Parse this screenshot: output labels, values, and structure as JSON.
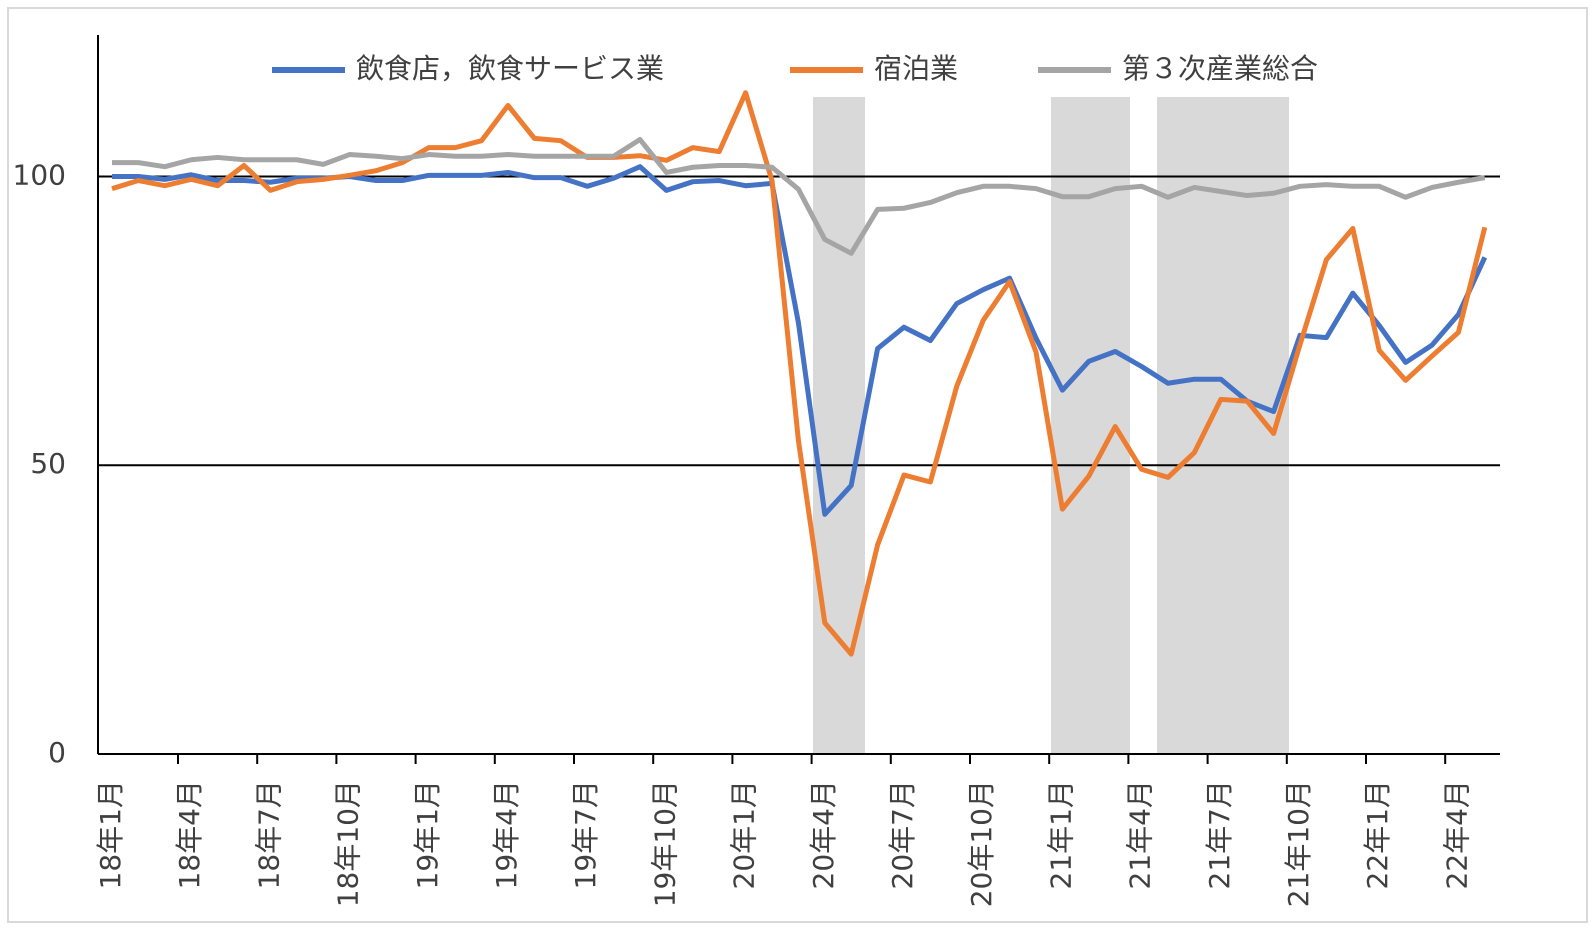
{
  "chart_data": {
    "type": "line",
    "categories": [
      "18年1月",
      null,
      null,
      "18年4月",
      null,
      null,
      "18年7月",
      null,
      null,
      "18年10月",
      null,
      null,
      "19年1月",
      null,
      null,
      "19年4月",
      null,
      null,
      "19年7月",
      null,
      null,
      "19年10月",
      null,
      null,
      "20年1月",
      null,
      null,
      "20年4月",
      null,
      null,
      "20年7月",
      null,
      null,
      "20年10月",
      null,
      null,
      "21年1月",
      null,
      null,
      "21年4月",
      null,
      null,
      "21年7月",
      null,
      null,
      "21年10月",
      null,
      null,
      "22年1月",
      null,
      null,
      "22年4月",
      null
    ],
    "series": [
      {
        "name": "飲食店，飲食サービス業",
        "color": "#4472c4",
        "values": [
          100,
          100,
          99.5,
          100.3,
          99.3,
          99.3,
          99,
          99.7,
          99.7,
          100,
          99.3,
          99.3,
          100.2,
          100.2,
          100.2,
          100.7,
          99.8,
          99.8,
          98.3,
          99.7,
          101.7,
          97.6,
          99.1,
          99.3,
          98.4,
          98.8,
          74.7,
          41.5,
          46.5,
          70.2,
          73.9,
          71.6,
          78,
          80.4,
          82.4,
          72,
          63,
          68,
          69.7,
          67.1,
          64.2,
          64.9,
          64.9,
          61.1,
          59.3,
          72.5,
          72.1,
          79.8,
          74.2,
          67.8,
          70.8,
          76.1,
          86
        ]
      },
      {
        "name": "宿泊業",
        "color": "#ed7d31",
        "values": [
          97.9,
          99.3,
          98.4,
          99.5,
          98.4,
          101.9,
          97.6,
          99.1,
          99.5,
          100.2,
          101,
          102.4,
          105,
          105,
          106.2,
          112.3,
          106.6,
          106.2,
          103.3,
          103.3,
          103.6,
          102.8,
          105,
          104.3,
          114.5,
          99.3,
          54.3,
          22.7,
          17.3,
          36.2,
          48.3,
          47.1,
          63.7,
          75.1,
          81.8,
          69.6,
          42.4,
          48.1,
          56.7,
          49.3,
          47.9,
          52.2,
          61.4,
          61.1,
          55.5,
          70.9,
          85.6,
          91,
          69.9,
          64.7,
          68.9,
          73,
          91.2
        ]
      },
      {
        "name": "第３次産業総合",
        "color": "#a5a5a5",
        "values": [
          102.4,
          102.4,
          101.7,
          102.9,
          103.3,
          102.9,
          102.9,
          102.9,
          102.1,
          103.8,
          103.5,
          103.1,
          103.8,
          103.5,
          103.5,
          103.8,
          103.5,
          103.5,
          103.5,
          103.5,
          106.4,
          100.7,
          101.6,
          101.9,
          101.9,
          101.6,
          97.8,
          89.1,
          86.7,
          94.3,
          94.5,
          95.5,
          97.2,
          98.3,
          98.3,
          97.9,
          96.5,
          96.5,
          97.9,
          98.3,
          96.4,
          98.1,
          97.4,
          96.7,
          97.1,
          98.3,
          98.6,
          98.3,
          98.3,
          96.4,
          98.1,
          99,
          99.8
        ]
      }
    ],
    "ylim": [
      0,
      124.5
    ],
    "yticks": [
      0,
      50,
      100
    ],
    "grid": true,
    "legend": "top"
  }
}
